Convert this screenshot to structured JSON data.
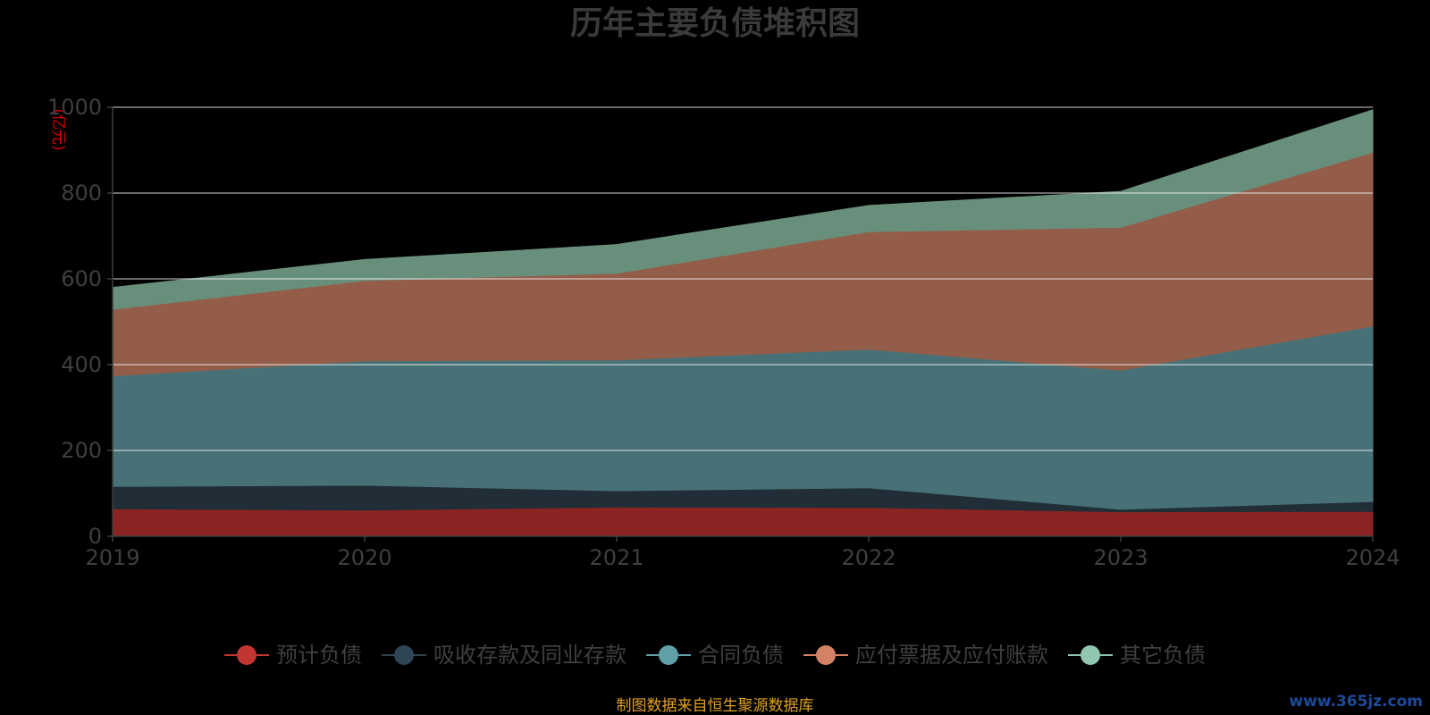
{
  "chart_data": {
    "type": "area",
    "stacked": true,
    "title": "历年主要负债堆积图",
    "unit_label": "(亿元)",
    "categories": [
      "2019",
      "2020",
      "2021",
      "2022",
      "2023",
      "2024"
    ],
    "ylim": [
      0,
      1000
    ],
    "yticks": [
      0,
      200,
      400,
      600,
      800,
      1000
    ],
    "grid": true,
    "legend_position": "bottom",
    "series": [
      {
        "name": "预计负债",
        "color": "#c23531",
        "fill": "#8b2323",
        "values": [
          64,
          61,
          68,
          67,
          57,
          58
        ]
      },
      {
        "name": "吸收存款及同业存款",
        "color": "#2f4554",
        "fill": "#212e37",
        "values": [
          52,
          58,
          38,
          46,
          6,
          23
        ]
      },
      {
        "name": "合同负债",
        "color": "#61a0a8",
        "fill": "#477176",
        "values": [
          258,
          290,
          305,
          323,
          324,
          409
        ]
      },
      {
        "name": "应付票据及应付账款",
        "color": "#d48265",
        "fill": "#945d49",
        "values": [
          155,
          187,
          202,
          274,
          333,
          405
        ]
      },
      {
        "name": "其它负债",
        "color": "#91c7ae",
        "fill": "#688f7c",
        "values": [
          51,
          49,
          67,
          61,
          84,
          99
        ]
      }
    ]
  },
  "footer": {
    "source": "制图数据来自恒生聚源数据库",
    "watermark": "www.365jz.com"
  }
}
